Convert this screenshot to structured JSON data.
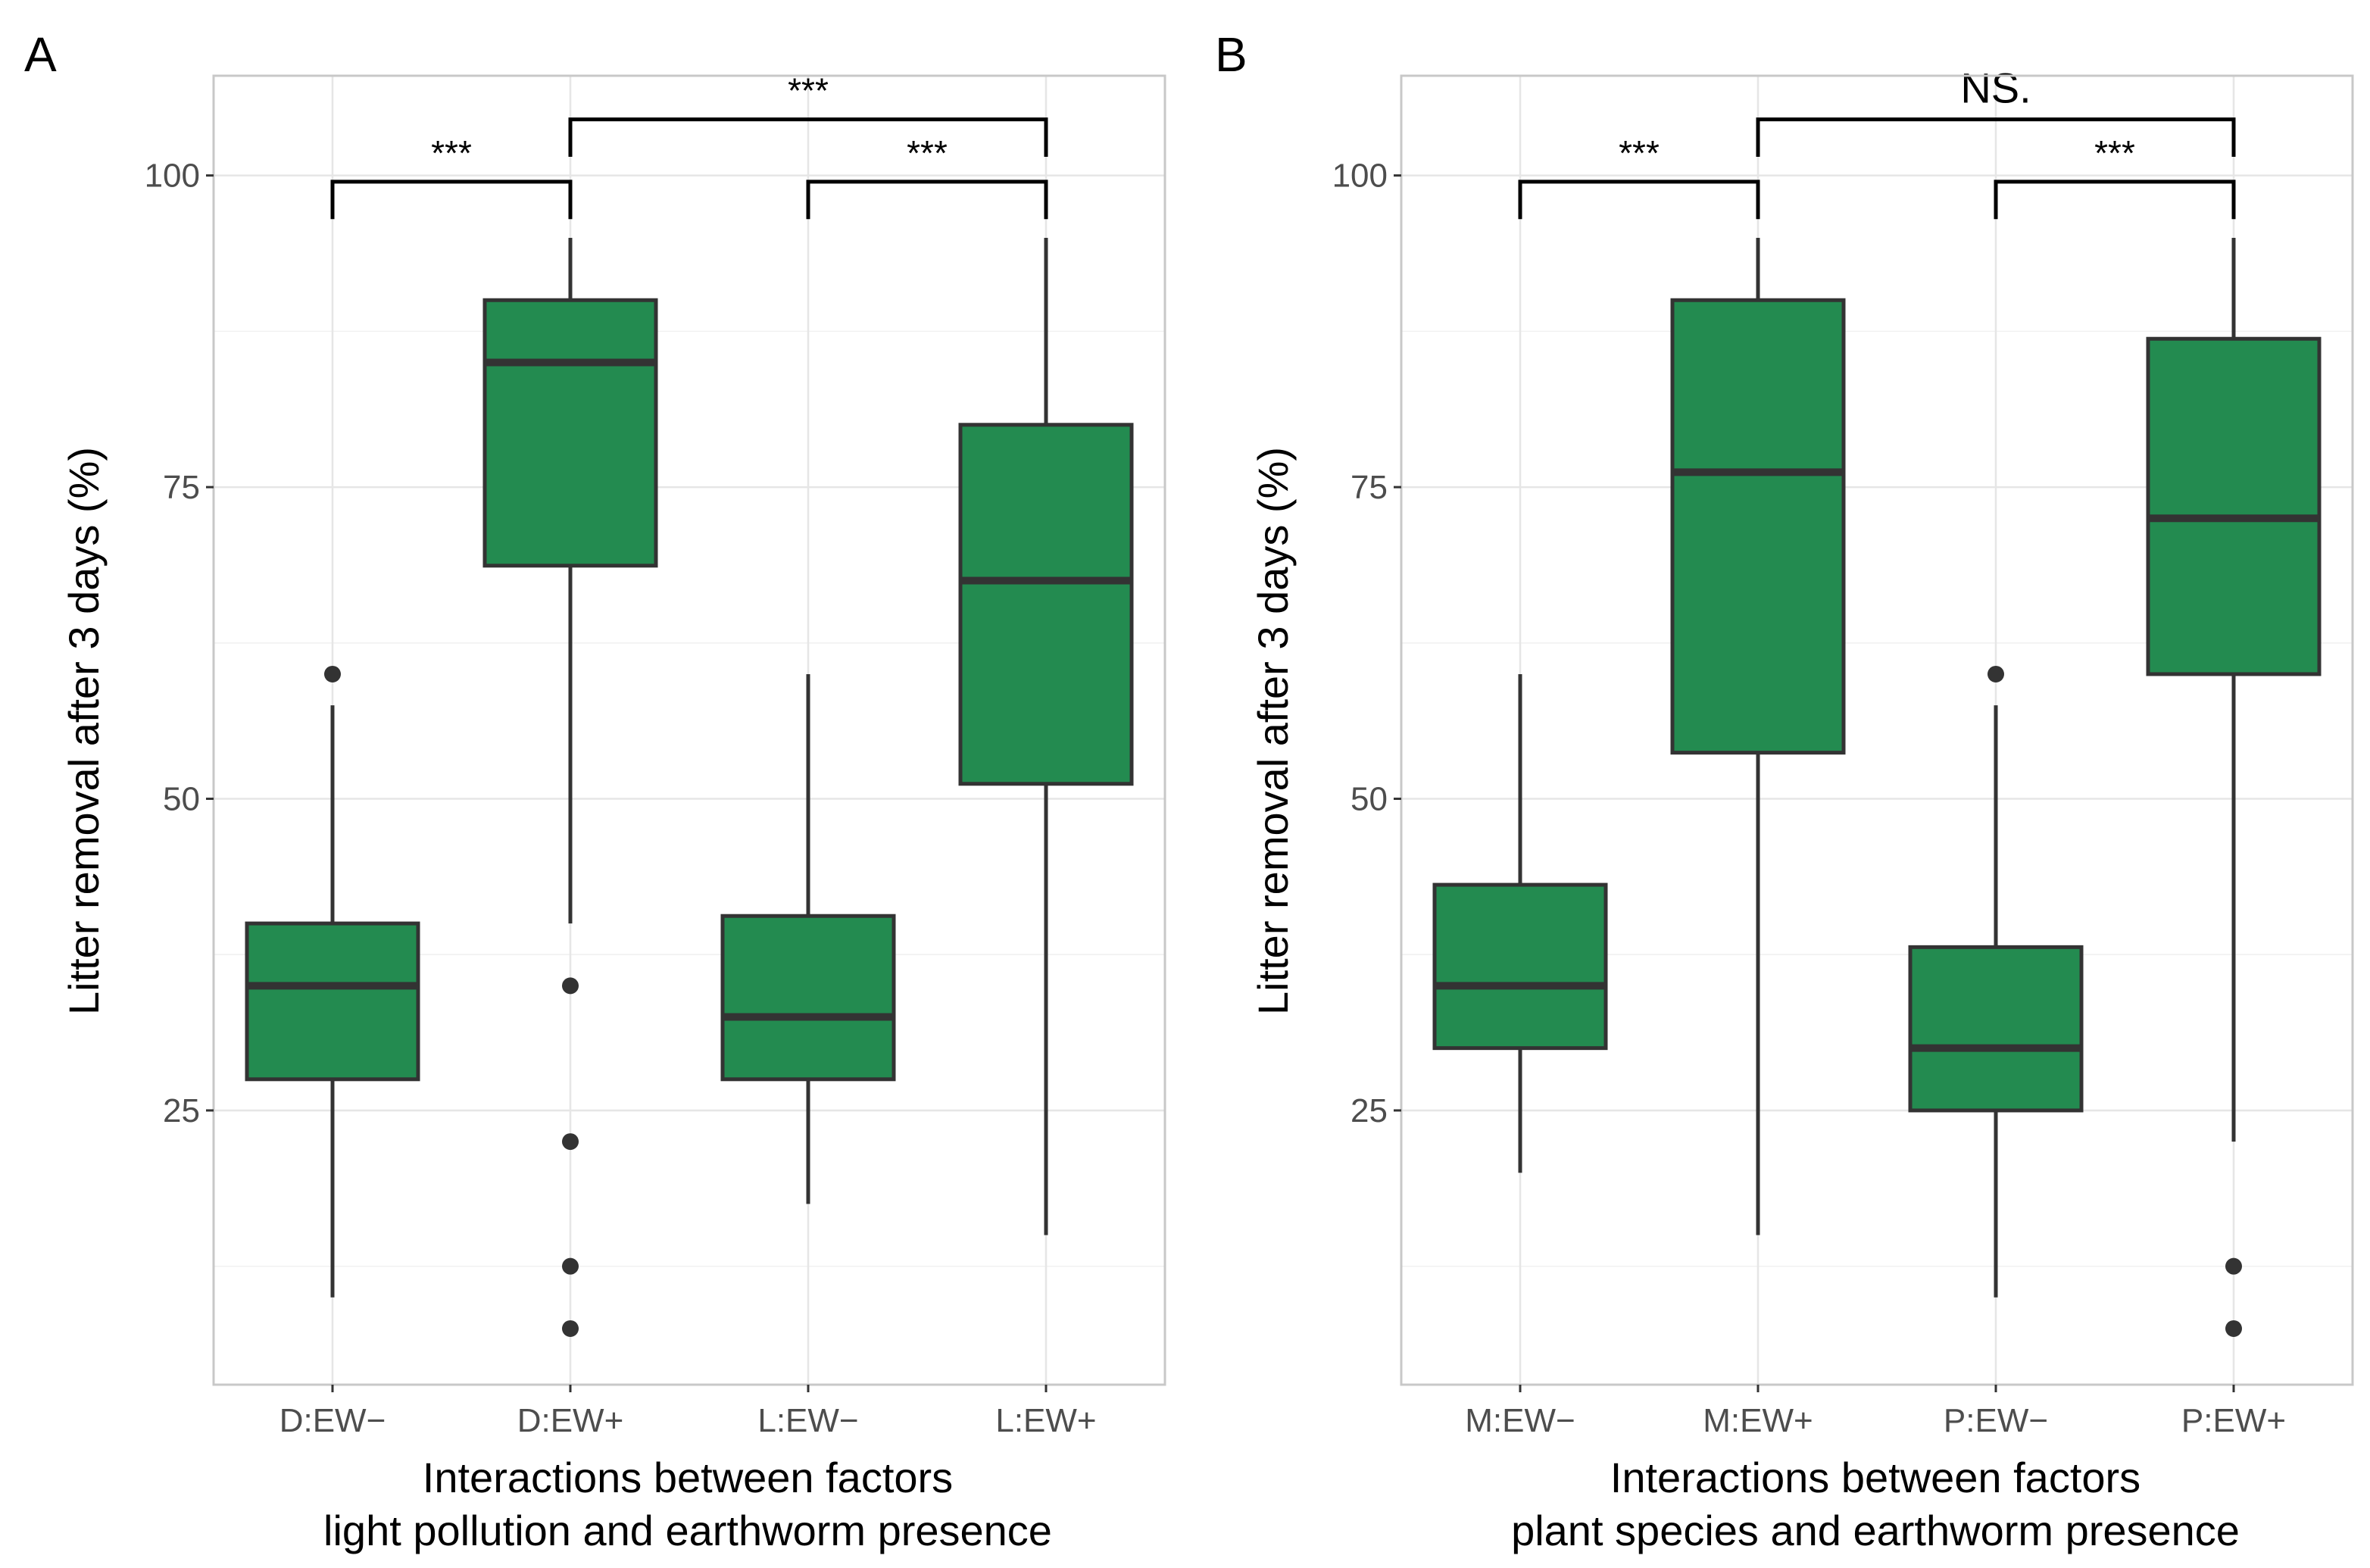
{
  "colors": {
    "box_fill": "#238b50",
    "box_line": "#333333"
  },
  "chart_data": [
    {
      "type": "box",
      "panel": "A",
      "ylabel": "Litter removal after 3 days (%)",
      "xlabel": [
        "Interactions between factors",
        "light pollution and earthworm presence"
      ],
      "ylim": [
        3,
        108
      ],
      "yticks": [
        25,
        50,
        75,
        100
      ],
      "grid": true,
      "categories": [
        "D:EW−",
        "D:EW+",
        "L:EW−",
        "L:EW+"
      ],
      "boxes": [
        {
          "category": "D:EW−",
          "q1": 27.5,
          "median": 35,
          "q3": 40,
          "whisker_low": 10,
          "whisker_high": 57.5,
          "outliers": [
            60
          ]
        },
        {
          "category": "D:EW+",
          "q1": 68.7,
          "median": 85,
          "q3": 90,
          "whisker_low": 40,
          "whisker_high": 95,
          "outliers": [
            35,
            22.5,
            12.5,
            7.5
          ]
        },
        {
          "category": "L:EW−",
          "q1": 27.5,
          "median": 32.5,
          "q3": 40.6,
          "whisker_low": 17.5,
          "whisker_high": 60,
          "outliers": []
        },
        {
          "category": "L:EW+",
          "q1": 51.2,
          "median": 67.5,
          "q3": 80,
          "whisker_low": 15,
          "whisker_high": 95,
          "outliers": []
        }
      ],
      "significance": [
        {
          "from": 0,
          "to": 1,
          "y": 99.5,
          "tip": 96.5,
          "label": "***",
          "label_size": "small"
        },
        {
          "from": 2,
          "to": 3,
          "y": 99.5,
          "tip": 96.5,
          "label": "***",
          "label_size": "small"
        },
        {
          "from": 1,
          "to": 3,
          "y": 104.5,
          "tip": 101.5,
          "label": "***",
          "label_size": "small"
        }
      ]
    },
    {
      "type": "box",
      "panel": "B",
      "ylabel": "Litter removal after 3 days (%)",
      "xlabel": [
        "Interactions between factors",
        "plant species and earthworm presence"
      ],
      "ylim": [
        3,
        108
      ],
      "yticks": [
        25,
        50,
        75,
        100
      ],
      "grid": true,
      "categories": [
        "M:EW−",
        "M:EW+",
        "P:EW−",
        "P:EW+"
      ],
      "boxes": [
        {
          "category": "M:EW−",
          "q1": 30,
          "median": 35,
          "q3": 43.1,
          "whisker_low": 20,
          "whisker_high": 60,
          "outliers": []
        },
        {
          "category": "M:EW+",
          "q1": 53.7,
          "median": 76.2,
          "q3": 90,
          "whisker_low": 15,
          "whisker_high": 95,
          "outliers": []
        },
        {
          "category": "P:EW−",
          "q1": 25,
          "median": 30,
          "q3": 38.1,
          "whisker_low": 10,
          "whisker_high": 57.5,
          "outliers": [
            60
          ]
        },
        {
          "category": "P:EW+",
          "q1": 60,
          "median": 72.5,
          "q3": 86.9,
          "whisker_low": 22.5,
          "whisker_high": 95,
          "outliers": [
            12.5,
            7.5
          ]
        }
      ],
      "significance": [
        {
          "from": 0,
          "to": 1,
          "y": 99.5,
          "tip": 96.5,
          "label": "***",
          "label_size": "small"
        },
        {
          "from": 2,
          "to": 3,
          "y": 99.5,
          "tip": 96.5,
          "label": "***",
          "label_size": "small"
        },
        {
          "from": 1,
          "to": 3,
          "y": 104.5,
          "tip": 101.5,
          "label": "NS.",
          "label_size": "large"
        }
      ]
    }
  ]
}
